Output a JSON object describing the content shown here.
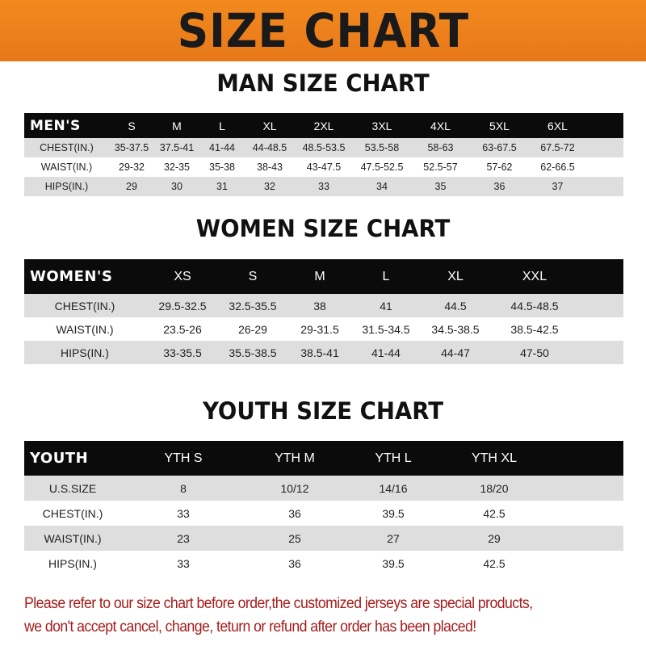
{
  "banner_title": "SIZE CHART",
  "men": {
    "title": "MAN SIZE CHART",
    "header": [
      "MEN'S",
      "S",
      "M",
      "L",
      "XL",
      "2XL",
      "3XL",
      "4XL",
      "5XL",
      "6XL"
    ],
    "rows": [
      [
        "CHEST(IN.)",
        "35-37.5",
        "37.5-41",
        "41-44",
        "44-48.5",
        "48.5-53.5",
        "53.5-58",
        "58-63",
        "63-67.5",
        "67.5-72"
      ],
      [
        "WAIST(IN.)",
        "29-32",
        "32-35",
        "35-38",
        "38-43",
        "43-47.5",
        "47.5-52.5",
        "52.5-57",
        "57-62",
        "62-66.5"
      ],
      [
        "HIPS(IN.)",
        "29",
        "30",
        "31",
        "32",
        "33",
        "34",
        "35",
        "36",
        "37"
      ]
    ]
  },
  "women": {
    "title": "WOMEN SIZE CHART",
    "header": [
      "WOMEN'S",
      "XS",
      "S",
      "M",
      "L",
      "XL",
      "XXL"
    ],
    "rows": [
      [
        "CHEST(IN.)",
        "29.5-32.5",
        "32.5-35.5",
        "38",
        "41",
        "44.5",
        "44.5-48.5"
      ],
      [
        "WAIST(IN.)",
        "23.5-26",
        "26-29",
        "29-31.5",
        "31.5-34.5",
        "34.5-38.5",
        "38.5-42.5"
      ],
      [
        "HIPS(IN.)",
        "33-35.5",
        "35.5-38.5",
        "38.5-41",
        "41-44",
        "44-47",
        "47-50"
      ]
    ]
  },
  "youth": {
    "title": "YOUTH SIZE CHART",
    "header": [
      "YOUTH",
      "YTH S",
      "YTH M",
      "YTH L",
      "YTH XL"
    ],
    "rows": [
      [
        "U.S.SIZE",
        "8",
        "10/12",
        "14/16",
        "18/20"
      ],
      [
        "CHEST(IN.)",
        "33",
        "36",
        "39.5",
        "42.5"
      ],
      [
        "WAIST(IN.)",
        "23",
        "25",
        "27",
        "29"
      ],
      [
        "HIPS(IN.)",
        "33",
        "36",
        "39.5",
        "42.5"
      ]
    ]
  },
  "note": {
    "line1": "Please refer to our size chart before order,the customized jerseys are special products,",
    "line2": "we don't accept cancel, change, teturn or refund after order has been placed!"
  },
  "colors": {
    "banner": "#f08020",
    "header_row": "#0b0b0b",
    "shaded_row": "#dedede",
    "note_text": "#a61c1c"
  }
}
